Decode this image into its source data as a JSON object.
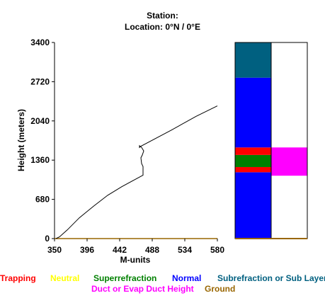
{
  "header": {
    "station": "Station:",
    "location": "Location:   0°N /   0°E"
  },
  "chart_data": {
    "type": "line",
    "title": "",
    "xlabel": "M-units",
    "ylabel": "Height (meters)",
    "xlim": [
      350,
      580
    ],
    "ylim": [
      0,
      3400
    ],
    "x_ticks": [
      "350",
      "396",
      "442",
      "488",
      "534",
      "580"
    ],
    "y_ticks": [
      "0",
      "680",
      "1360",
      "2040",
      "2720",
      "3400"
    ],
    "series": [
      {
        "x": [
          352,
          357,
          368,
          385,
          405,
          425,
          445,
          463,
          475,
          475,
          473,
          472,
          474,
          476,
          473,
          470,
          470,
          472,
          515,
          550,
          580
        ],
        "y": [
          0,
          30,
          150,
          360,
          560,
          750,
          900,
          1020,
          1100,
          1250,
          1300,
          1400,
          1450,
          1520,
          1580,
          1610,
          1580,
          1600,
          1880,
          2120,
          2300
        ]
      }
    ],
    "layer_bar": {
      "ylim": [
        0,
        3400
      ],
      "left_column": [
        {
          "from": 0,
          "to": 1150,
          "category": "Normal"
        },
        {
          "from": 1150,
          "to": 1240,
          "category": "Trapping"
        },
        {
          "from": 1240,
          "to": 1450,
          "category": "Superrefraction"
        },
        {
          "from": 1450,
          "to": 1580,
          "category": "Trapping"
        },
        {
          "from": 1580,
          "to": 2790,
          "category": "Normal"
        },
        {
          "from": 2790,
          "to": 3400,
          "category": "Subrefraction or Sub Layer"
        }
      ],
      "right_column": [
        {
          "from": 1090,
          "to": 1580,
          "category": "Duct or Evap Duct Height"
        }
      ]
    }
  },
  "legend": {
    "trapping": "Trapping",
    "neutral": "Neutral",
    "superrefraction": "Superrefraction",
    "normal": "Normal",
    "subrefraction": "Subrefraction or Sub Layer",
    "duct": "Duct or Evap Duct Height",
    "ground": "Ground"
  },
  "colors": {
    "Trapping": "#ff0000",
    "Neutral": "#ffff00",
    "Superrefraction": "#008000",
    "Normal": "#0000ff",
    "Subrefraction or Sub Layer": "#006080",
    "Duct or Evap Duct Height": "#ff00ff",
    "Ground": "#996600"
  }
}
